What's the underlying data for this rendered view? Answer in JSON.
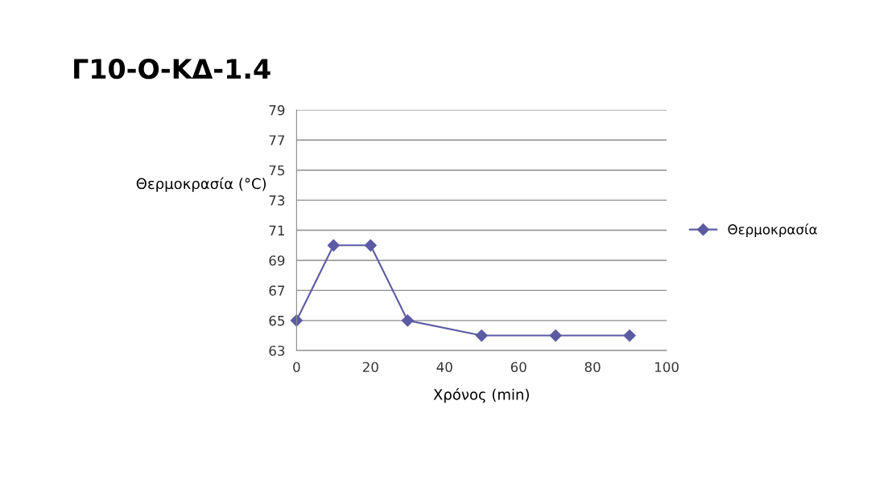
{
  "chart_data": {
    "type": "line",
    "title": "Γ10-Ο-ΚΔ-1.4",
    "xlabel": "Χρόνος (min)",
    "ylabel": "Θερμοκρασία (°C)",
    "x": [
      0,
      10,
      20,
      30,
      50,
      70,
      90
    ],
    "series": [
      {
        "name": "Θερμοκρασία",
        "color": "#5b5ba3",
        "values": [
          65,
          70,
          70,
          65,
          64,
          64,
          64
        ]
      }
    ],
    "xlim": [
      0,
      100
    ],
    "xticks": [
      0,
      20,
      40,
      60,
      80,
      100
    ],
    "ylim": [
      63,
      79
    ],
    "yticks": [
      63,
      65,
      67,
      69,
      71,
      73,
      75,
      77,
      79
    ],
    "grid": "y",
    "legend": "right",
    "marker": "diamond",
    "line_style": "solid"
  }
}
